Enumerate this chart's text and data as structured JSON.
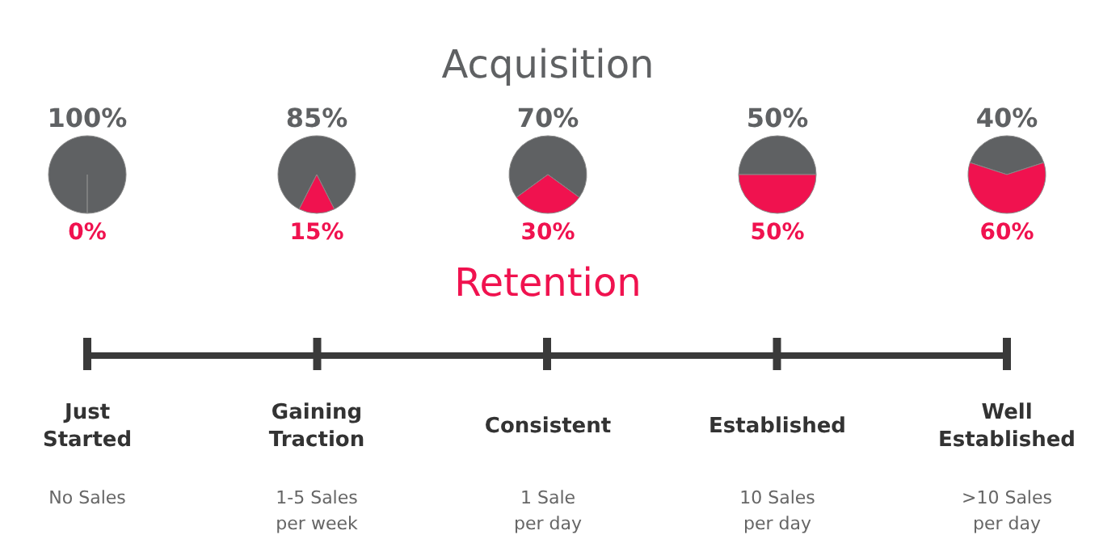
{
  "chart_data": [
    {
      "type": "pie",
      "categories": [
        null,
        null
      ],
      "values": [
        100,
        0
      ],
      "colors": [
        "#5f6163",
        "#f0124f"
      ],
      "value_labels": [
        "100%",
        "0%"
      ],
      "xlabel": "Just\nStarted",
      "annotations": [
        "No Sales"
      ]
    },
    {
      "type": "pie",
      "categories": [
        null,
        null
      ],
      "values": [
        85,
        15
      ],
      "colors": [
        "#5f6163",
        "#f0124f"
      ],
      "value_labels": [
        "85%",
        "15%"
      ],
      "xlabel": "Gaining\nTraction",
      "annotations": [
        "1-5 Sales\nper week"
      ]
    },
    {
      "type": "pie",
      "categories": [
        "Acquisition",
        "Retention"
      ],
      "values": [
        70,
        30
      ],
      "colors": [
        "#5f6163",
        "#f0124f"
      ],
      "value_labels": [
        "70%",
        "30%"
      ],
      "xlabel": "Consistent",
      "annotations": [
        "1 Sale\nper day"
      ]
    },
    {
      "type": "pie",
      "categories": [
        null,
        null
      ],
      "values": [
        50,
        50
      ],
      "colors": [
        "#5f6163",
        "#f0124f"
      ],
      "value_labels": [
        "50%",
        "50%"
      ],
      "xlabel": "Established",
      "annotations": [
        "10 Sales\nper day"
      ]
    },
    {
      "type": "pie",
      "categories": [
        null,
        null
      ],
      "values": [
        40,
        60
      ],
      "colors": [
        "#5f6163",
        "#f0124f"
      ],
      "value_labels": [
        "40%",
        "60%"
      ],
      "xlabel": "Well\nEstablished",
      "annotations": [
        ">10 Sales\nper day"
      ]
    }
  ]
}
